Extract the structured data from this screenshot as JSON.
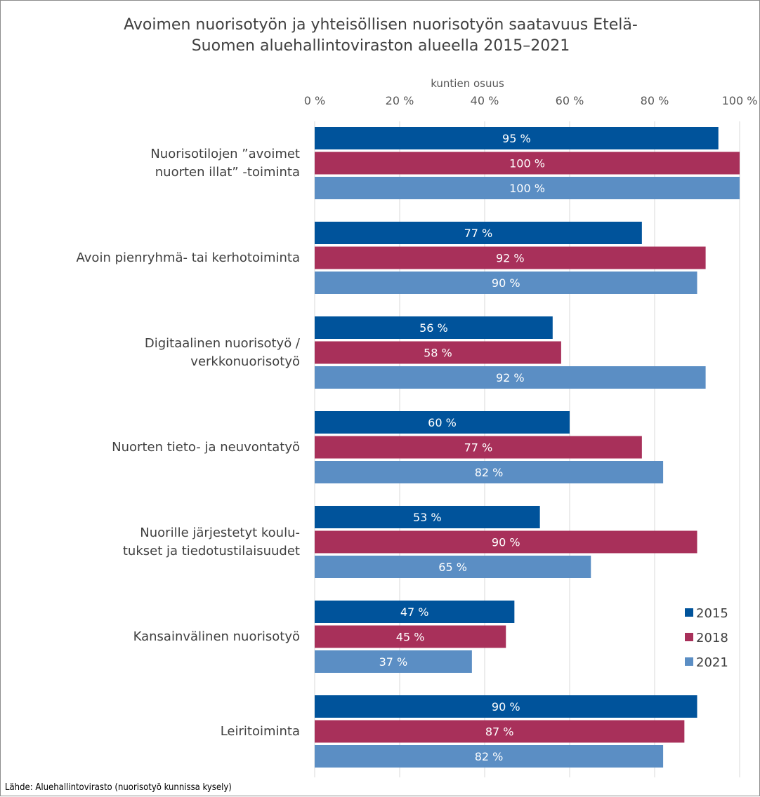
{
  "chart_data": {
    "type": "bar",
    "orientation": "horizontal",
    "title": "Avoimen nuorisotyön ja yhteisöllisen nuorisotyön saatavuus Etelä-Suomen aluehallintoviraston alueella 2015–2021",
    "title_lines": [
      "Avoimen nuorisotyön ja yhteisöllisen nuorisotyön saatavuus Etelä-",
      "Suomen aluehallintoviraston alueella 2015–2021"
    ],
    "xlabel": "kuntien osuus",
    "xlim": [
      0,
      100
    ],
    "x_ticks": [
      "0 %",
      "20 %",
      "40 %",
      "60 %",
      "80 %",
      "100 %"
    ],
    "categories": [
      "Nuorisotilojen ”avoimet nuorten illat” -toiminta",
      "Avoin pienryhmä- tai kerhotoiminta",
      "Digitaalinen nuorisotyö / verkkonuorisotyö",
      "Nuorten tieto- ja neuvontatyö",
      "Nuorille järjestetyt koulu-tukset ja tiedotustilaisuudet",
      "Kansainvälinen nuorisotyö",
      "Leiritoiminta"
    ],
    "category_lines": [
      [
        "Nuorisotilojen ”avoimet",
        "nuorten illat” -toiminta"
      ],
      [
        "Avoin pienryhmä- tai kerhotoiminta"
      ],
      [
        "Digitaalinen nuorisotyö /",
        "verkkonuorisotyö"
      ],
      [
        "Nuorten tieto- ja neuvontatyö"
      ],
      [
        "Nuorille järjestetyt koulu-",
        "tukset ja tiedotustilaisuudet"
      ],
      [
        "Kansainvälinen nuorisotyö"
      ],
      [
        "Leiritoiminta"
      ]
    ],
    "series": [
      {
        "name": "2015",
        "color": "#00539b",
        "values": [
          95,
          77,
          56,
          60,
          53,
          47,
          90
        ]
      },
      {
        "name": "2018",
        "color": "#a8305a",
        "values": [
          100,
          92,
          58,
          77,
          90,
          45,
          87
        ]
      },
      {
        "name": "2021",
        "color": "#5b8ec4",
        "values": [
          100,
          90,
          92,
          82,
          65,
          37,
          82
        ]
      }
    ],
    "grid": true,
    "legend": "right"
  },
  "source": "Lähde: Aluehallintovirasto (nuorisotyö kunnissa kysely)"
}
